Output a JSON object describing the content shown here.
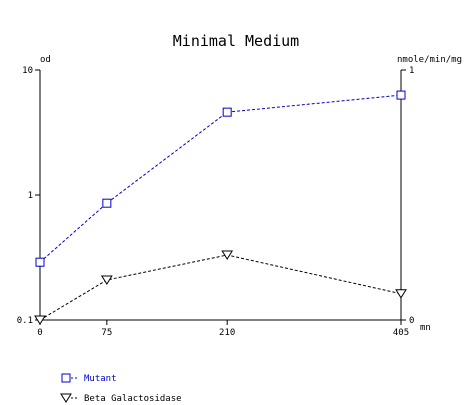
{
  "chart_data": {
    "type": "line",
    "title": "Minimal Medium",
    "x_unit": "mn",
    "x": [
      0,
      75,
      210,
      405
    ],
    "x_ticks": [
      "0",
      "75",
      "210",
      "405"
    ],
    "left_axis": {
      "label": "od",
      "scale": "log",
      "range": [
        0.1,
        10
      ],
      "ticks": [
        "0.1",
        "1",
        "10"
      ]
    },
    "right_axis": {
      "label": "nmole/min/mg",
      "scale": "linear",
      "range": [
        0,
        1
      ],
      "ticks": [
        "0",
        "1"
      ]
    },
    "series": [
      {
        "name": "Mutant",
        "axis": "left",
        "marker": "square",
        "color": "#0000cc",
        "values": [
          0.29,
          0.86,
          4.6,
          6.3
        ]
      },
      {
        "name": "Beta Galactosidase",
        "axis": "right",
        "marker": "triangle-down",
        "color": "#000000",
        "values": [
          0.0,
          0.16,
          0.26,
          0.105
        ]
      }
    ],
    "grid": false,
    "legend_position": "bottom-left"
  }
}
